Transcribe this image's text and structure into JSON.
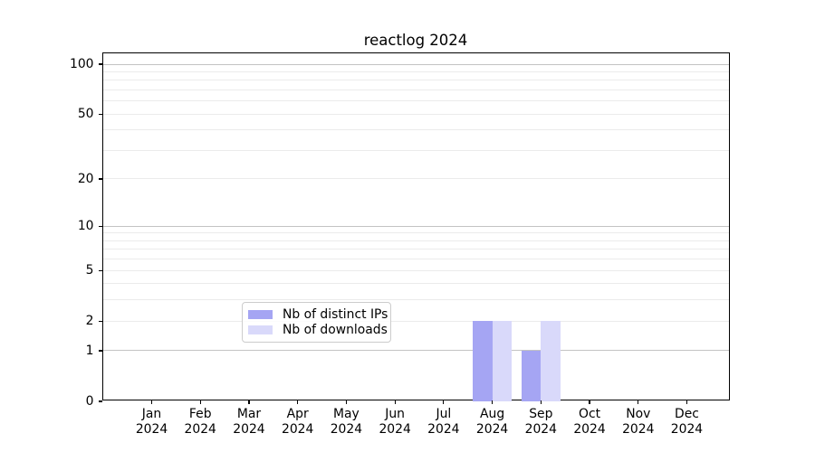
{
  "title": "reactlog 2024",
  "chart_data": {
    "type": "bar",
    "title": "reactlog 2024",
    "x": [
      "Jan 2024",
      "Feb 2024",
      "Mar 2024",
      "Apr 2024",
      "May 2024",
      "Jun 2024",
      "Jul 2024",
      "Aug 2024",
      "Sep 2024",
      "Oct 2024",
      "Nov 2024",
      "Dec 2024"
    ],
    "x_tick_labels": [
      "Jan\n2024",
      "Feb\n2024",
      "Mar\n2024",
      "Apr\n2024",
      "May\n2024",
      "Jun\n2024",
      "Jul\n2024",
      "Aug\n2024",
      "Sep\n2024",
      "Oct\n2024",
      "Nov\n2024",
      "Dec\n2024"
    ],
    "series": [
      {
        "name": "Nb of distinct IPs",
        "color": "#a5a5f3",
        "values": [
          0,
          0,
          0,
          0,
          0,
          0,
          0,
          2,
          1,
          0,
          0,
          0
        ]
      },
      {
        "name": "Nb of downloads",
        "color": "#d9d9fa",
        "values": [
          0,
          0,
          0,
          0,
          0,
          0,
          0,
          2,
          2,
          0,
          0,
          0
        ]
      }
    ],
    "xlabel": "",
    "ylabel": "",
    "y_scale": "log1p",
    "ylim": [
      0,
      116
    ],
    "y_ticks": [
      0,
      1,
      2,
      5,
      10,
      20,
      50,
      100
    ],
    "grid": {
      "major_values": [
        1,
        10,
        100
      ],
      "minor_values": [
        2,
        3,
        4,
        5,
        6,
        7,
        8,
        9,
        20,
        30,
        40,
        50,
        60,
        70,
        80,
        90
      ]
    },
    "legend_position": "lower center"
  },
  "legend": {
    "items": [
      {
        "label": "Nb of distinct IPs",
        "color": "#a5a5f3"
      },
      {
        "label": "Nb of downloads",
        "color": "#d9d9fa"
      }
    ]
  },
  "colors": {
    "background": "#ffffff",
    "axis": "#000000",
    "grid_major": "#c3c3c3",
    "grid_minor": "#ebebeb",
    "legend_border": "#cccccc",
    "bar_distinct_ips": "#a5a5f3",
    "bar_downloads": "#d9d9fa"
  }
}
